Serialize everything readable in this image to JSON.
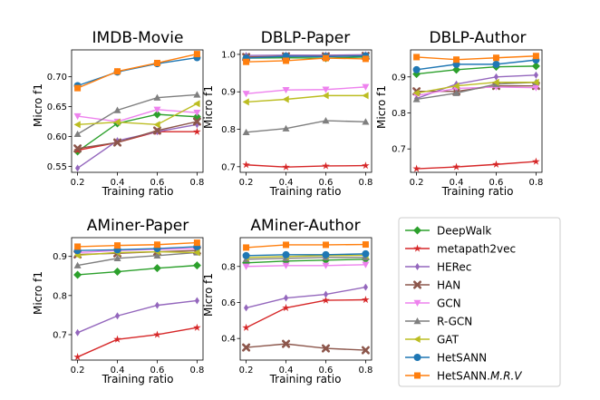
{
  "colors": {
    "DeepWalk": "#2ca02c",
    "metapath2vec": "#d62728",
    "HERec": "#9467bd",
    "HAN": "#8c564b",
    "GCN": "#ee82ee",
    "R-GCN": "#7f7f7f",
    "GAT": "#bcbd22",
    "HetSANN": "#1f77b4",
    "HetSANN.M.R.V": "#ff7f0e"
  },
  "legend": {
    "entries": [
      {
        "name": "DeepWalk",
        "marker": "diamond"
      },
      {
        "name": "metapath2vec",
        "marker": "star"
      },
      {
        "name": "HERec",
        "marker": "thin-diamond"
      },
      {
        "name": "HAN",
        "marker": "x"
      },
      {
        "name": "GCN",
        "marker": "triangle-down"
      },
      {
        "name": "R-GCN",
        "marker": "triangle-up"
      },
      {
        "name": "GAT",
        "marker": "triangle-left"
      },
      {
        "name": "HetSANN",
        "marker": "circle"
      },
      {
        "name": "HetSANN.M.R.V",
        "marker": "square",
        "label_main": "HetSANN.",
        "label_italic": "M.R.V"
      }
    ]
  },
  "chart_data": [
    {
      "type": "line",
      "title": "IMDB-Movie",
      "xlabel": "Training ratio",
      "ylabel": "Micro f1",
      "x": [
        0.2,
        0.4,
        0.6,
        0.8
      ],
      "xlim": [
        0.17,
        0.83
      ],
      "ylim": [
        0.54,
        0.745
      ],
      "yticks": [
        0.55,
        0.6,
        0.65,
        0.7
      ],
      "ytick_labels": [
        "0.55",
        "0.60",
        "0.65",
        "0.70"
      ],
      "xtick_labels": [
        "0.2",
        "0.4",
        "0.6",
        "0.8"
      ],
      "series": [
        {
          "name": "DeepWalk",
          "values": [
            0.575,
            0.622,
            0.637,
            0.633
          ]
        },
        {
          "name": "metapath2vec",
          "values": [
            0.577,
            0.59,
            0.608,
            0.608
          ]
        },
        {
          "name": "HERec",
          "values": [
            0.547,
            0.593,
            0.608,
            0.62
          ]
        },
        {
          "name": "HAN",
          "values": [
            0.58,
            0.59,
            0.61,
            0.625
          ]
        },
        {
          "name": "GCN",
          "values": [
            0.634,
            0.625,
            0.645,
            0.64
          ]
        },
        {
          "name": "R-GCN",
          "values": [
            0.604,
            0.644,
            0.665,
            0.67
          ]
        },
        {
          "name": "GAT",
          "values": [
            0.62,
            0.624,
            0.62,
            0.655
          ]
        },
        {
          "name": "HetSANN",
          "values": [
            0.685,
            0.708,
            0.722,
            0.732
          ]
        },
        {
          "name": "HetSANN.M.R.V",
          "values": [
            0.681,
            0.709,
            0.723,
            0.738
          ]
        }
      ]
    },
    {
      "type": "line",
      "title": "DBLP-Paper",
      "xlabel": "Training ratio",
      "ylabel": "Micro f1",
      "x": [
        0.2,
        0.4,
        0.6,
        0.8
      ],
      "xlim": [
        0.17,
        0.83
      ],
      "ylim": [
        0.685,
        1.012
      ],
      "yticks": [
        0.7,
        0.8,
        0.9,
        1.0
      ],
      "ytick_labels": [
        "0.7",
        "0.8",
        "0.9",
        "1.0"
      ],
      "xtick_labels": [
        "0.2",
        "0.4",
        "0.6",
        "0.8"
      ],
      "series": [
        {
          "name": "DeepWalk",
          "values": [
            0.99,
            0.991,
            0.99,
            0.993
          ]
        },
        {
          "name": "metapath2vec",
          "values": [
            0.705,
            0.699,
            0.702,
            0.703
          ]
        },
        {
          "name": "HERec",
          "values": [
            0.997,
            0.998,
            0.998,
            0.999
          ]
        },
        {
          "name": "HAN",
          "values": [
            0.993,
            0.995,
            0.995,
            0.996
          ]
        },
        {
          "name": "GCN",
          "values": [
            0.895,
            0.905,
            0.906,
            0.913
          ]
        },
        {
          "name": "R-GCN",
          "values": [
            0.792,
            0.802,
            0.823,
            0.82
          ]
        },
        {
          "name": "GAT",
          "values": [
            0.873,
            0.88,
            0.89,
            0.89
          ]
        },
        {
          "name": "HetSANN",
          "values": [
            0.99,
            0.995,
            0.994,
            0.996
          ]
        },
        {
          "name": "HetSANN.M.R.V",
          "values": [
            0.98,
            0.983,
            0.99,
            0.988
          ]
        }
      ]
    },
    {
      "type": "line",
      "title": "DBLP-Author",
      "xlabel": "Training ratio",
      "ylabel": "Micro f1",
      "x": [
        0.2,
        0.4,
        0.6,
        0.8
      ],
      "xlim": [
        0.17,
        0.83
      ],
      "ylim": [
        0.635,
        0.975
      ],
      "yticks": [
        0.7,
        0.8,
        0.9
      ],
      "ytick_labels": [
        "0.7",
        "0.8",
        "0.9"
      ],
      "xtick_labels": [
        "0.2",
        "0.4",
        "0.6",
        "0.8"
      ],
      "series": [
        {
          "name": "DeepWalk",
          "values": [
            0.908,
            0.92,
            0.928,
            0.93
          ]
        },
        {
          "name": "metapath2vec",
          "values": [
            0.645,
            0.65,
            0.657,
            0.665
          ]
        },
        {
          "name": "HERec",
          "values": [
            0.84,
            0.88,
            0.9,
            0.905
          ]
        },
        {
          "name": "HAN",
          "values": [
            0.86,
            0.86,
            0.875,
            0.875
          ]
        },
        {
          "name": "GCN",
          "values": [
            0.848,
            0.868,
            0.872,
            0.87
          ]
        },
        {
          "name": "R-GCN",
          "values": [
            0.838,
            0.855,
            0.88,
            0.885
          ]
        },
        {
          "name": "GAT",
          "values": [
            0.855,
            0.875,
            0.885,
            0.885
          ]
        },
        {
          "name": "HetSANN",
          "values": [
            0.92,
            0.935,
            0.935,
            0.947
          ]
        },
        {
          "name": "HetSANN.M.R.V",
          "values": [
            0.955,
            0.948,
            0.953,
            0.958
          ]
        }
      ]
    },
    {
      "type": "line",
      "title": "AMiner-Paper",
      "xlabel": "Training ratio",
      "ylabel": "Micro f1",
      "x": [
        0.2,
        0.4,
        0.6,
        0.8
      ],
      "xlim": [
        0.17,
        0.83
      ],
      "ylim": [
        0.635,
        0.948
      ],
      "yticks": [
        0.7,
        0.8,
        0.9
      ],
      "ytick_labels": [
        "0.7",
        "0.8",
        "0.9"
      ],
      "xtick_labels": [
        "0.2",
        "0.4",
        "0.6",
        "0.8"
      ],
      "series": [
        {
          "name": "DeepWalk",
          "values": [
            0.853,
            0.861,
            0.87,
            0.877
          ]
        },
        {
          "name": "metapath2vec",
          "values": [
            0.643,
            0.688,
            0.7,
            0.718
          ]
        },
        {
          "name": "HERec",
          "values": [
            0.705,
            0.748,
            0.775,
            0.787
          ]
        },
        {
          "name": "HAN",
          "values": [
            0.905,
            0.908,
            0.912,
            0.915
          ]
        },
        {
          "name": "GCN",
          "values": [
            0.91,
            0.915,
            0.918,
            0.92
          ]
        },
        {
          "name": "R-GCN",
          "values": [
            0.877,
            0.895,
            0.902,
            0.91
          ]
        },
        {
          "name": "GAT",
          "values": [
            0.903,
            0.91,
            0.912,
            0.91
          ]
        },
        {
          "name": "HetSANN",
          "values": [
            0.915,
            0.917,
            0.92,
            0.925
          ]
        },
        {
          "name": "HetSANN.M.R.V",
          "values": [
            0.925,
            0.928,
            0.93,
            0.935
          ]
        }
      ]
    },
    {
      "type": "line",
      "title": "AMiner-Author",
      "xlabel": "Training ratio",
      "ylabel": "Micro f1",
      "x": [
        0.2,
        0.4,
        0.6,
        0.8
      ],
      "xlim": [
        0.17,
        0.83
      ],
      "ylim": [
        0.28,
        0.96
      ],
      "yticks": [
        0.4,
        0.6,
        0.8
      ],
      "ytick_labels": [
        "0.4",
        "0.6",
        "0.8"
      ],
      "xtick_labels": [
        "0.2",
        "0.4",
        "0.6",
        "0.8"
      ],
      "series": [
        {
          "name": "DeepWalk",
          "values": [
            0.82,
            0.83,
            0.835,
            0.84
          ]
        },
        {
          "name": "metapath2vec",
          "values": [
            0.46,
            0.57,
            0.612,
            0.615
          ]
        },
        {
          "name": "HERec",
          "values": [
            0.57,
            0.625,
            0.645,
            0.685
          ]
        },
        {
          "name": "HAN",
          "values": [
            0.35,
            0.37,
            0.345,
            0.335
          ]
        },
        {
          "name": "GCN",
          "values": [
            0.8,
            0.805,
            0.805,
            0.81
          ]
        },
        {
          "name": "R-GCN",
          "values": [
            0.84,
            0.845,
            0.85,
            0.85
          ]
        },
        {
          "name": "GAT",
          "values": [
            0.85,
            0.855,
            0.86,
            0.862
          ]
        },
        {
          "name": "HetSANN",
          "values": [
            0.86,
            0.865,
            0.865,
            0.87
          ]
        },
        {
          "name": "HetSANN.M.R.V",
          "values": [
            0.905,
            0.92,
            0.92,
            0.922
          ]
        }
      ]
    }
  ]
}
